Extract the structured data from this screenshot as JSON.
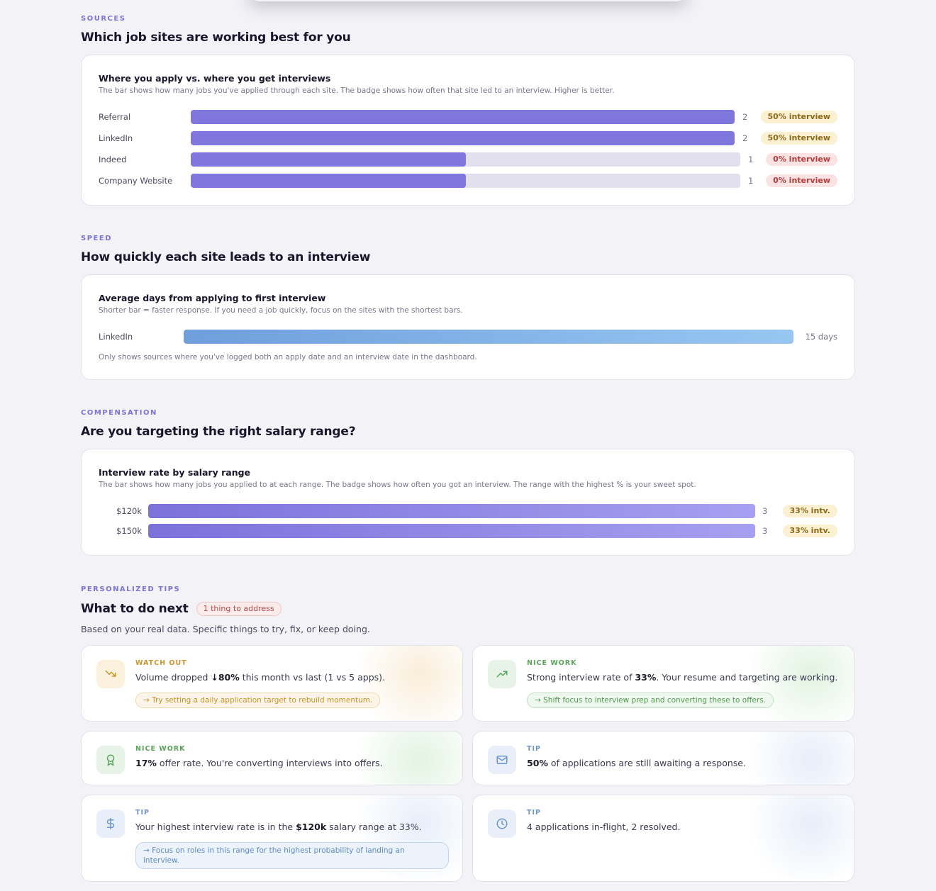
{
  "sources": {
    "eyebrow": "SOURCES",
    "title": "Which job sites are working best for you",
    "card_title": "Where you apply vs. where you get interviews",
    "card_subtitle": "The bar shows how many jobs you've applied through each site. The badge shows how often that site led to an interview. Higher is better.",
    "max_count": 2,
    "rows": [
      {
        "label": "Referral",
        "count": 2,
        "count_text": "2",
        "badge": "50% interview",
        "badge_status": "good"
      },
      {
        "label": "LinkedIn",
        "count": 2,
        "count_text": "2",
        "badge": "50% interview",
        "badge_status": "good"
      },
      {
        "label": "Indeed",
        "count": 1,
        "count_text": "1",
        "badge": "0% interview",
        "badge_status": "bad"
      },
      {
        "label": "Company Website",
        "count": 1,
        "count_text": "1",
        "badge": "0% interview",
        "badge_status": "bad"
      }
    ]
  },
  "speed": {
    "eyebrow": "SPEED",
    "title": "How quickly each site leads to an interview",
    "card_title": "Average days from applying to first interview",
    "card_subtitle": "Shorter bar = faster response. If you need a job quickly, focus on the sites with the shortest bars.",
    "max_days": 15,
    "rows": [
      {
        "label": "LinkedIn",
        "days": 15,
        "days_text": "15 days"
      }
    ],
    "note": "Only shows sources where you've logged both an apply date and an interview date in the dashboard."
  },
  "compensation": {
    "eyebrow": "COMPENSATION",
    "title": "Are you targeting the right salary range?",
    "card_title": "Interview rate by salary range",
    "card_subtitle": "The bar shows how many jobs you applied to at each range. The badge shows how often you got an interview. The range with the highest % is your sweet spot.",
    "max_count": 3,
    "rows": [
      {
        "label": "$120k",
        "count": 3,
        "count_text": "3",
        "badge": "33% intv."
      },
      {
        "label": "$150k",
        "count": 3,
        "count_text": "3",
        "badge": "33% intv."
      }
    ]
  },
  "tips": {
    "eyebrow": "PERSONALIZED TIPS",
    "title": "What to do next",
    "pill": "1 thing to address",
    "description": "Based on your real data. Specific things to try, fix, or keep doing.",
    "cards": [
      {
        "kind": "warn",
        "icon": "trending-down-icon",
        "kicker": "WATCH OUT",
        "text_before": "Volume dropped ",
        "text_bold": "↓80%",
        "text_after": " this month vs last (1 vs 5 apps).",
        "action": "→ Try setting a daily application target to rebuild momentum."
      },
      {
        "kind": "nice",
        "icon": "trending-up-icon",
        "kicker": "NICE WORK",
        "text_before": "Strong interview rate of ",
        "text_bold": "33%",
        "text_after": ". Your resume and targeting are working.",
        "action": "→ Shift focus to interview prep and converting these to offers."
      },
      {
        "kind": "nice",
        "icon": "award-icon",
        "kicker": "NICE WORK",
        "text_before": "",
        "text_bold": "17%",
        "text_after": " offer rate. You're converting interviews into offers.",
        "action": ""
      },
      {
        "kind": "info",
        "icon": "mail-icon",
        "kicker": "TIP",
        "text_before": "",
        "text_bold": "50%",
        "text_after": " of applications are still awaiting a response.",
        "action": ""
      },
      {
        "kind": "info",
        "icon": "dollar-icon",
        "kicker": "TIP",
        "text_before": "Your highest interview rate is in the ",
        "text_bold": "$120k",
        "text_after": " salary range at 33%.",
        "action": "→ Focus on roles in this range for the highest probability of landing an interview."
      },
      {
        "kind": "info",
        "icon": "clock-icon",
        "kicker": "TIP",
        "text_before": "4 applications in-flight, 2 resolved.",
        "text_bold": "",
        "text_after": "",
        "action": ""
      }
    ]
  },
  "colors": {
    "accent": "#7f77de",
    "good_badge": "#fbf0d1",
    "bad_badge": "#fbe3e3",
    "speed_bar": "#8ab4e8"
  }
}
